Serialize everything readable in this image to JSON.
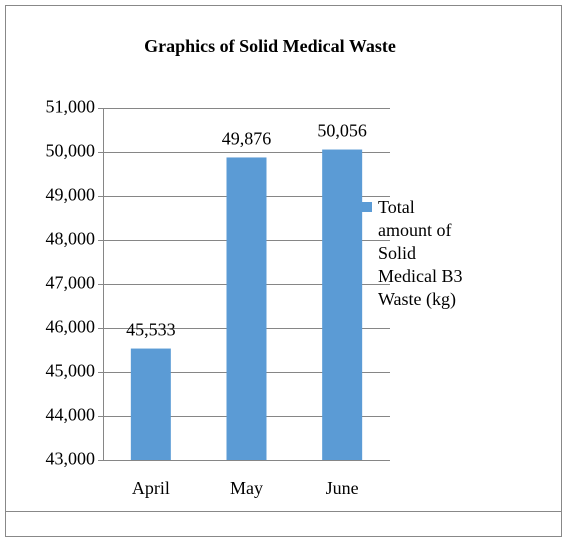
{
  "chart_data": {
    "type": "bar",
    "title": "Graphics of Solid Medical Waste",
    "categories": [
      "April",
      "May",
      "June"
    ],
    "series": [
      {
        "name": "Total amount of Solid Medical B3 Waste (kg)",
        "color": "#5b9bd5",
        "values": [
          45533,
          49876,
          50056
        ],
        "value_labels": [
          "45,533",
          "49,876",
          "50,056"
        ]
      }
    ],
    "ylim": [
      43000,
      51000
    ],
    "yticks": [
      {
        "value": 43000,
        "label": "43,000"
      },
      {
        "value": 44000,
        "label": "44,000"
      },
      {
        "value": 45000,
        "label": "45,000"
      },
      {
        "value": 46000,
        "label": "46,000"
      },
      {
        "value": 47000,
        "label": "47,000"
      },
      {
        "value": 48000,
        "label": "48,000"
      },
      {
        "value": 49000,
        "label": "49,000"
      },
      {
        "value": 50000,
        "label": "50,000"
      },
      {
        "value": 51000,
        "label": "51,000"
      }
    ],
    "grid": true,
    "legend": "right"
  }
}
